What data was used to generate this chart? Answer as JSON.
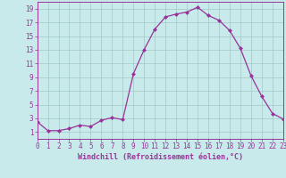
{
  "x": [
    0,
    1,
    2,
    3,
    4,
    5,
    6,
    7,
    8,
    9,
    10,
    11,
    12,
    13,
    14,
    15,
    16,
    17,
    18,
    19,
    20,
    21,
    22,
    23
  ],
  "y": [
    2.5,
    1.2,
    1.2,
    1.5,
    2.0,
    1.8,
    2.7,
    3.1,
    2.8,
    9.5,
    13.0,
    16.0,
    17.8,
    18.2,
    18.5,
    19.2,
    18.0,
    17.3,
    15.8,
    13.2,
    9.2,
    6.2,
    3.7,
    2.9
  ],
  "line_color": "#993399",
  "marker": "D",
  "marker_size": 2.0,
  "bg_color": "#c8eaea",
  "grid_color": "#a0c8c8",
  "xlim": [
    0,
    23
  ],
  "ylim": [
    0,
    20
  ],
  "yticks": [
    1,
    3,
    5,
    7,
    9,
    11,
    13,
    15,
    17,
    19
  ],
  "xticks": [
    0,
    1,
    2,
    3,
    4,
    5,
    6,
    7,
    8,
    9,
    10,
    11,
    12,
    13,
    14,
    15,
    16,
    17,
    18,
    19,
    20,
    21,
    22,
    23
  ],
  "xlabel": "Windchill (Refroidissement éolien,°C)",
  "xlabel_color": "#993399",
  "tick_color": "#993399",
  "spine_color": "#993399",
  "label_fontsize": 5.5,
  "tick_fontsize": 5.5,
  "xlabel_fontsize": 6.0
}
